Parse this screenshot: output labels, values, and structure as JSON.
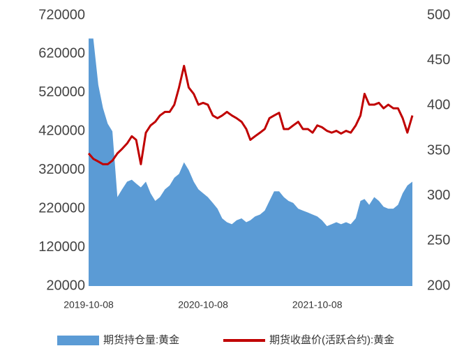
{
  "chart_data": {
    "type": "area-line",
    "x": [
      "2019-10-08",
      "2019-10-23",
      "2019-11-08",
      "2019-11-23",
      "2019-12-08",
      "2019-12-23",
      "2020-01-08",
      "2020-01-23",
      "2020-02-08",
      "2020-02-23",
      "2020-03-08",
      "2020-03-23",
      "2020-04-08",
      "2020-04-23",
      "2020-05-08",
      "2020-05-23",
      "2020-06-08",
      "2020-06-23",
      "2020-07-08",
      "2020-07-23",
      "2020-08-08",
      "2020-08-23",
      "2020-09-08",
      "2020-09-23",
      "2020-10-08",
      "2020-10-23",
      "2020-11-08",
      "2020-11-23",
      "2020-12-08",
      "2020-12-23",
      "2021-01-08",
      "2021-01-23",
      "2021-02-08",
      "2021-02-23",
      "2021-03-08",
      "2021-03-23",
      "2021-04-08",
      "2021-04-23",
      "2021-05-08",
      "2021-05-23",
      "2021-06-08",
      "2021-06-23",
      "2021-07-08",
      "2021-07-23",
      "2021-08-08",
      "2021-08-23",
      "2021-09-08",
      "2021-09-23",
      "2021-10-08",
      "2021-10-23",
      "2021-11-08",
      "2021-11-23",
      "2021-12-08",
      "2021-12-23",
      "2022-01-08",
      "2022-01-23",
      "2022-02-08",
      "2022-02-23",
      "2022-03-08",
      "2022-03-23",
      "2022-04-08",
      "2022-04-23",
      "2022-05-08",
      "2022-05-23",
      "2022-06-08",
      "2022-06-23",
      "2022-07-08",
      "2022-07-23",
      "2022-08-08"
    ],
    "xlim": [
      "2019-10-08",
      "2022-08-08"
    ],
    "xticks": [
      "2019-10-08",
      "2020-10-08",
      "2021-10-08"
    ],
    "ylim": [
      20000,
      720000
    ],
    "yticks": [
      20000,
      120000,
      220000,
      320000,
      420000,
      520000,
      620000,
      720000
    ],
    "y2lim": [
      200,
      500
    ],
    "y2ticks": [
      200,
      250,
      300,
      350,
      400,
      450,
      500
    ],
    "series": [
      {
        "name": "期货持仓量:黄金",
        "color": "#5b9bd5",
        "kind": "area",
        "values": [
          660000,
          660000,
          540000,
          480000,
          440000,
          420000,
          250000,
          270000,
          290000,
          295000,
          285000,
          275000,
          290000,
          260000,
          240000,
          250000,
          270000,
          280000,
          300000,
          310000,
          340000,
          320000,
          290000,
          270000,
          260000,
          250000,
          235000,
          220000,
          195000,
          185000,
          180000,
          190000,
          195000,
          185000,
          190000,
          200000,
          205000,
          215000,
          240000,
          265000,
          265000,
          250000,
          240000,
          235000,
          220000,
          215000,
          210000,
          205000,
          200000,
          190000,
          175000,
          180000,
          185000,
          180000,
          185000,
          180000,
          195000,
          240000,
          245000,
          230000,
          250000,
          240000,
          225000,
          220000,
          220000,
          230000,
          260000,
          280000,
          290000
        ]
      },
      {
        "name": "期货收盘价(活跃合约):黄金",
        "color": "#c00000",
        "kind": "line",
        "axis": "y2",
        "values": [
          347,
          341,
          338,
          335,
          335,
          339,
          347,
          352,
          358,
          366,
          362,
          335,
          370,
          378,
          382,
          389,
          393,
          393,
          401,
          420,
          444,
          420,
          413,
          401,
          403,
          401,
          389,
          386,
          389,
          393,
          389,
          386,
          382,
          374,
          362,
          366,
          370,
          374,
          386,
          389,
          392,
          374,
          374,
          378,
          382,
          374,
          374,
          370,
          378,
          376,
          372,
          370,
          372,
          369,
          372,
          370,
          378,
          389,
          413,
          401,
          401,
          403,
          397,
          401,
          397,
          397,
          386,
          370,
          389
        ]
      }
    ],
    "legend": "bottom"
  }
}
